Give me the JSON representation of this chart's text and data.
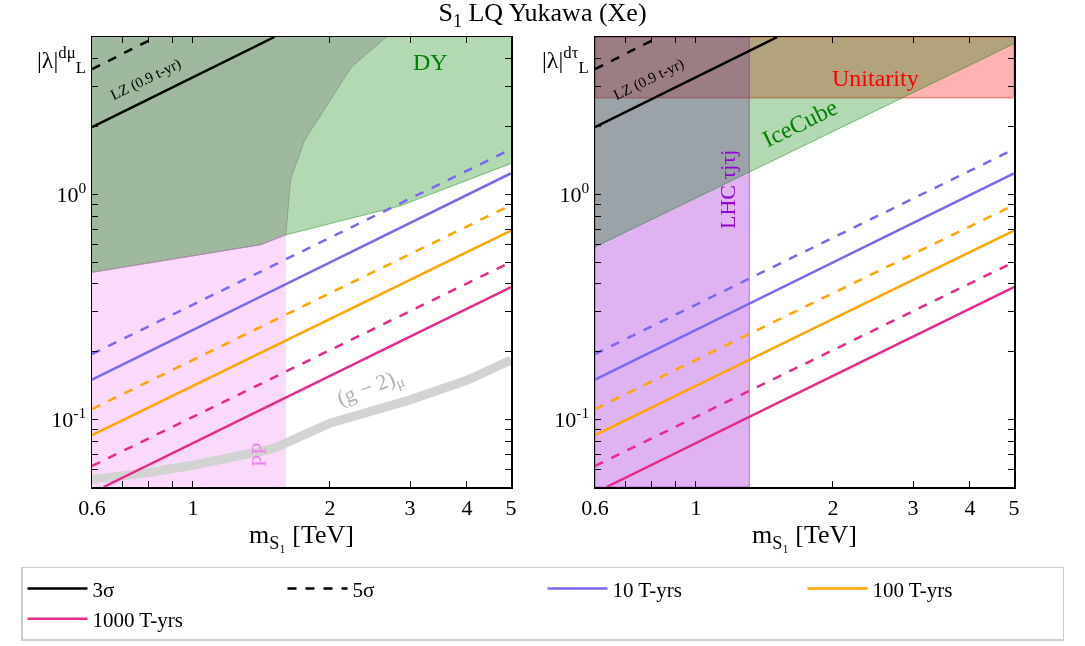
{
  "chart_data": [
    {
      "type": "line",
      "title": "S$_{1}$ LQ Yukawa (Xe)",
      "xlabel": "m$_{S₁}$ [TeV]",
      "ylabel": "|λ|$^{dμ}$$_{L}$",
      "log": "xy",
      "grid": false,
      "legend": "bottom",
      "xlim": [
        0.6,
        5
      ],
      "xticks": [
        0.6,
        {
          "value": 0.7,
          "label": null
        },
        {
          "value": 0.8,
          "label": null
        },
        {
          "value": 0.9,
          "label": null
        },
        1,
        2,
        3,
        4,
        5
      ],
      "ylim": [
        0.05,
        5
      ],
      "yticks": [
        {
          "value": 0.06,
          "label": null
        },
        {
          "value": 0.07,
          "label": null
        },
        {
          "value": 0.08,
          "label": null
        },
        {
          "value": 0.09,
          "label": null
        },
        {
          "value": 0.1,
          "label": "10$^{-1}$"
        },
        {
          "value": 0.2,
          "label": null
        },
        {
          "value": 0.3,
          "label": null
        },
        {
          "value": 0.4,
          "label": null
        },
        {
          "value": 0.5,
          "label": null
        },
        {
          "value": 0.6,
          "label": null
        },
        {
          "value": 0.7,
          "label": null
        },
        {
          "value": 0.8,
          "label": null
        },
        {
          "value": 0.9,
          "label": null
        },
        {
          "value": 1,
          "label": "10$^{0}$"
        },
        {
          "value": 2,
          "label": null
        },
        {
          "value": 3,
          "label": null
        },
        {
          "value": 4,
          "label": null
        }
      ],
      "series": [
        {
          "color": "#008000",
          "x": [
            0.6,
            1.41,
            1.6,
            2.85,
            5
          ],
          "values": [
            0.45,
            0.597,
            0.66,
            0.887,
            1.37
          ],
          "lower": [
            0.45,
            0.597,
            0.66,
            0.887,
            1.37
          ],
          "upper": [
            5,
            5,
            5,
            5,
            5
          ]
        },
        {
          "color": "#707070",
          "x": [
            0.6,
            1.41,
            1.6,
            1.64,
            1.76,
            2.23,
            2.66
          ],
          "values": [
            0.45,
            0.597,
            0.66,
            1.17,
            1.74,
            3.68,
            5
          ],
          "lower": [
            0.45,
            0.597,
            0.66,
            1.17,
            1.74,
            3.68,
            5
          ],
          "upper": [
            5,
            5,
            5,
            5,
            5,
            5,
            5
          ]
        },
        {
          "color": "#ee82ee",
          "x": [
            0.6,
            1.41,
            1.53,
            1.6
          ],
          "values": [
            0.45,
            0.597,
            0.64,
            0.66
          ],
          "lower": [
            0.05,
            0.05,
            0.05,
            0.05
          ],
          "upper": [
            0.45,
            0.597,
            0.64,
            0.66
          ]
        },
        {
          "color": "#d3d3d3",
          "x": [
            0.6,
            0.8,
            1,
            1.5,
            2,
            3,
            4,
            5
          ],
          "values": [
            0.054,
            0.058,
            0.0625,
            0.074,
            0.096,
            0.122,
            0.149,
            0.183
          ]
        },
        {
          "name": "3σ",
          "color": "#000000",
          "line_style": "solid",
          "x": [
            0.6,
            1.51
          ],
          "values": [
            1.99,
            5
          ]
        },
        {
          "name": "5σ",
          "color": "#000000",
          "line_style": "dashed",
          "x": [
            0.6,
            0.83
          ],
          "values": [
            3.6,
            5
          ]
        },
        {
          "name": "10 T-yrs",
          "color": "#7b68ee",
          "line_style": "solid",
          "x": [
            0.6,
            5
          ],
          "values": [
            0.15,
            1.24
          ]
        },
        {
          "name": "100 T-yrs",
          "color": "#ffa500",
          "line_style": "solid",
          "x": [
            0.6,
            5
          ],
          "values": [
            0.085,
            0.69
          ]
        },
        {
          "name": "1000 T-yrs",
          "color": "#e7298a",
          "line_style": "solid",
          "x": [
            0.636,
            5
          ],
          "values": [
            0.05,
            0.387
          ]
        },
        {
          "color": "#7b68ee",
          "line_style": "dashed",
          "x": [
            0.6,
            5
          ],
          "values": [
            0.195,
            1.585
          ]
        },
        {
          "color": "#ffa500",
          "line_style": "dashed",
          "x": [
            0.6,
            5
          ],
          "values": [
            0.111,
            0.896
          ]
        },
        {
          "color": "#e7298a",
          "line_style": "dashed",
          "x": [
            0.6,
            5
          ],
          "values": [
            0.062,
            0.5
          ]
        }
      ],
      "annotations": [
        "DY",
        "PP",
        "(g − 2)$_{μ}$",
        "LZ (0.9 t-yr)"
      ]
    },
    {
      "type": "line",
      "xlabel": "m$_{S₁}$ [TeV]",
      "ylabel": "|λ|$^{dτ}$$_{L}$",
      "log": "xy",
      "grid": false,
      "xlim": [
        0.6,
        5
      ],
      "xticks": [
        0.6,
        {
          "value": 0.7,
          "label": null
        },
        {
          "value": 0.8,
          "label": null
        },
        {
          "value": 0.9,
          "label": null
        },
        1,
        2,
        3,
        4,
        5
      ],
      "ylim": [
        0.05,
        5
      ],
      "yticks": [
        {
          "value": 0.06,
          "label": null
        },
        {
          "value": 0.07,
          "label": null
        },
        {
          "value": 0.08,
          "label": null
        },
        {
          "value": 0.09,
          "label": null
        },
        {
          "value": 0.1,
          "label": "10$^{-1}$"
        },
        {
          "value": 0.2,
          "label": null
        },
        {
          "value": 0.3,
          "label": null
        },
        {
          "value": 0.4,
          "label": null
        },
        {
          "value": 0.5,
          "label": null
        },
        {
          "value": 0.6,
          "label": null
        },
        {
          "value": 0.7,
          "label": null
        },
        {
          "value": 0.8,
          "label": null
        },
        {
          "value": 0.9,
          "label": null
        },
        {
          "value": 1,
          "label": "10$^{0}$"
        },
        {
          "value": 2,
          "label": null
        },
        {
          "value": 3,
          "label": null
        },
        {
          "value": 4,
          "label": null
        }
      ],
      "bands": [
        {
          "axis": "y",
          "from": 2.68,
          "to": 5,
          "color": "#ff0000"
        },
        {
          "axis": "x",
          "from": 0.6,
          "to": 1.31,
          "color": "#9400d3"
        }
      ],
      "series": [
        {
          "color": "#008000",
          "x": [
            0.6,
            5
          ],
          "values": [
            0.583,
            4.67
          ],
          "lower": [
            0.583,
            4.67
          ],
          "upper": [
            5,
            5
          ]
        },
        {
          "color": "#000000",
          "line_style": "solid",
          "x": [
            0.6,
            1.51
          ],
          "values": [
            1.99,
            5
          ]
        },
        {
          "color": "#000000",
          "line_style": "dashed",
          "x": [
            0.6,
            0.83
          ],
          "values": [
            3.6,
            5
          ]
        },
        {
          "color": "#7b68ee",
          "line_style": "solid",
          "x": [
            0.6,
            5
          ],
          "values": [
            0.15,
            1.24
          ]
        },
        {
          "color": "#ffa500",
          "line_style": "solid",
          "x": [
            0.6,
            5
          ],
          "values": [
            0.085,
            0.69
          ]
        },
        {
          "color": "#e7298a",
          "line_style": "solid",
          "x": [
            0.636,
            5
          ],
          "values": [
            0.05,
            0.387
          ]
        },
        {
          "color": "#7b68ee",
          "line_style": "dashed",
          "x": [
            0.6,
            5
          ],
          "values": [
            0.195,
            1.585
          ]
        },
        {
          "color": "#ffa500",
          "line_style": "dashed",
          "x": [
            0.6,
            5
          ],
          "values": [
            0.111,
            0.896
          ]
        },
        {
          "color": "#e7298a",
          "line_style": "dashed",
          "x": [
            0.6,
            5
          ],
          "values": [
            0.062,
            0.5
          ]
        }
      ],
      "annotations": [
        "Unitarity",
        "IceCube",
        "LHC τjτj",
        "LZ (0.9 t-yr)"
      ]
    }
  ]
}
